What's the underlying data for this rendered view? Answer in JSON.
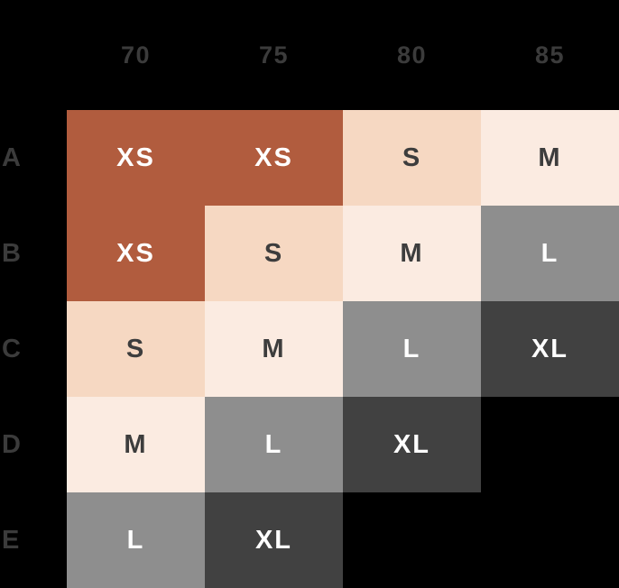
{
  "chart_data": {
    "type": "heatmap",
    "x_labels": [
      "70",
      "75",
      "80",
      "85"
    ],
    "y_labels": [
      "A",
      "B",
      "C",
      "D",
      "E"
    ],
    "cells": [
      [
        "XS",
        "XS",
        "S",
        "M"
      ],
      [
        "XS",
        "S",
        "M",
        "L"
      ],
      [
        "S",
        "M",
        "L",
        "XL"
      ],
      [
        "M",
        "L",
        "XL",
        null
      ],
      [
        "L",
        "XL",
        null,
        null
      ]
    ],
    "legend_position": "none",
    "grid": false
  },
  "palette": {
    "background": "#000000",
    "label_text": "#3b3b3b",
    "cell_fill": {
      "XS": "#b15c3e",
      "S": "#f6d8c2",
      "M": "#fbebe1",
      "L": "#8e8e8e",
      "XL": "#414141"
    },
    "cell_text": {
      "XS": "#ffffff",
      "S": "#3d3d3d",
      "M": "#3d3d3d",
      "L": "#ffffff",
      "XL": "#ffffff"
    }
  }
}
